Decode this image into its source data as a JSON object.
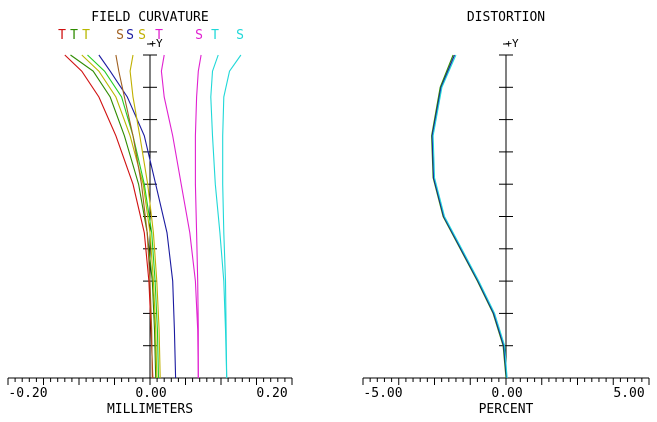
{
  "chart_data": [
    {
      "type": "line",
      "title": "FIELD CURVATURE",
      "xlabel": "MILLIMETERS",
      "ylabel": "+Y",
      "x_tick_labels": [
        "-0.20",
        "0.00",
        "0.20"
      ],
      "xlim": [
        -0.25,
        0.25
      ],
      "ylim": [
        0,
        1
      ],
      "legend": [
        {
          "label": "T",
          "color": "#d01010"
        },
        {
          "label": "T",
          "color": "#2e8b00"
        },
        {
          "label": "T",
          "color": "#b8b800"
        },
        {
          "label": "S",
          "color": "#a06020"
        },
        {
          "label": "S",
          "color": "#1a1aa0"
        },
        {
          "label": "S",
          "color": "#c0b000"
        },
        {
          "label": "T",
          "color": "#e020d0"
        },
        {
          "label": "S",
          "color": "#e020d0"
        },
        {
          "label": "T",
          "color": "#20d8d8"
        },
        {
          "label": "S",
          "color": "#20d8d8"
        }
      ],
      "series": [
        {
          "color": "#d01010",
          "x": [
            0.005,
            0.002,
            -0.002,
            -0.01,
            -0.03,
            -0.06,
            -0.09,
            -0.12,
            -0.15
          ],
          "y": [
            0,
            0.15,
            0.3,
            0.45,
            0.6,
            0.75,
            0.87,
            0.95,
            1.0
          ]
        },
        {
          "color": "#2e8b00",
          "x": [
            0.01,
            0.008,
            0.004,
            -0.005,
            -0.02,
            -0.045,
            -0.07,
            -0.1,
            -0.14
          ],
          "y": [
            0,
            0.15,
            0.3,
            0.45,
            0.6,
            0.75,
            0.87,
            0.95,
            1.0
          ]
        },
        {
          "color": "#b8b800",
          "x": [
            0.012,
            0.01,
            0.006,
            0.0,
            -0.012,
            -0.035,
            -0.06,
            -0.09,
            -0.12
          ],
          "y": [
            0,
            0.15,
            0.3,
            0.45,
            0.6,
            0.75,
            0.87,
            0.95,
            1.0
          ]
        },
        {
          "color": "#22cc22",
          "x": [
            0.015,
            0.013,
            0.009,
            0.003,
            -0.01,
            -0.03,
            -0.05,
            -0.08,
            -0.11
          ],
          "y": [
            0,
            0.15,
            0.3,
            0.45,
            0.6,
            0.75,
            0.87,
            0.95,
            1.0
          ]
        },
        {
          "color": "#1a1aa0",
          "x": [
            0.045,
            0.043,
            0.04,
            0.03,
            0.01,
            -0.01,
            -0.04,
            -0.07,
            -0.09
          ],
          "y": [
            0,
            0.15,
            0.3,
            0.45,
            0.6,
            0.75,
            0.87,
            0.95,
            1.0
          ]
        },
        {
          "color": "#a06020",
          "x": [
            0.004,
            0.003,
            0.0,
            -0.005,
            -0.015,
            -0.03,
            -0.045,
            -0.055,
            -0.06
          ],
          "y": [
            0,
            0.15,
            0.3,
            0.45,
            0.6,
            0.75,
            0.87,
            0.95,
            1.0
          ]
        },
        {
          "color": "#c0b000",
          "x": [
            0.018,
            0.016,
            0.012,
            0.006,
            -0.004,
            -0.018,
            -0.03,
            -0.035,
            -0.03
          ],
          "y": [
            0,
            0.15,
            0.3,
            0.45,
            0.6,
            0.75,
            0.87,
            0.95,
            1.0
          ]
        },
        {
          "color": "#e020d0",
          "x": [
            0.085,
            0.084,
            0.08,
            0.07,
            0.055,
            0.04,
            0.025,
            0.02,
            0.025
          ],
          "y": [
            0,
            0.15,
            0.3,
            0.45,
            0.6,
            0.75,
            0.87,
            0.95,
            1.0
          ]
        },
        {
          "color": "#e020d0",
          "x": [
            0.085,
            0.085,
            0.084,
            0.082,
            0.08,
            0.08,
            0.082,
            0.085,
            0.09
          ],
          "y": [
            0,
            0.15,
            0.3,
            0.45,
            0.6,
            0.75,
            0.87,
            0.95,
            1.0
          ]
        },
        {
          "color": "#20d8d8",
          "x": [
            0.135,
            0.133,
            0.13,
            0.123,
            0.115,
            0.11,
            0.107,
            0.11,
            0.12
          ],
          "y": [
            0,
            0.15,
            0.3,
            0.45,
            0.6,
            0.75,
            0.87,
            0.95,
            1.0
          ]
        },
        {
          "color": "#20d8d8",
          "x": [
            0.135,
            0.134,
            0.133,
            0.13,
            0.128,
            0.128,
            0.13,
            0.14,
            0.16
          ],
          "y": [
            0,
            0.15,
            0.3,
            0.45,
            0.6,
            0.75,
            0.87,
            0.95,
            1.0
          ]
        }
      ]
    },
    {
      "type": "line",
      "title": "DISTORTION",
      "xlabel": "PERCENT",
      "ylabel": "+Y",
      "x_tick_labels": [
        "-5.00",
        "0.00",
        "5.00"
      ],
      "xlim": [
        -5.0,
        5.0
      ],
      "ylim": [
        0,
        1
      ],
      "series": [
        {
          "color": "#2e8b00",
          "x": [
            0.0,
            -0.1,
            -0.45,
            -1.0,
            -1.6,
            -2.2,
            -2.55,
            -2.6,
            -2.3,
            -1.85
          ],
          "y": [
            0,
            0.1,
            0.2,
            0.3,
            0.4,
            0.5,
            0.62,
            0.75,
            0.9,
            1.0
          ]
        },
        {
          "color": "#1a1aa0",
          "x": [
            0.02,
            -0.08,
            -0.43,
            -0.98,
            -1.58,
            -2.18,
            -2.53,
            -2.58,
            -2.27,
            -1.8
          ],
          "y": [
            0,
            0.1,
            0.2,
            0.3,
            0.4,
            0.5,
            0.62,
            0.75,
            0.9,
            1.0
          ]
        },
        {
          "color": "#20d8d8",
          "x": [
            0.04,
            -0.05,
            -0.4,
            -0.95,
            -1.55,
            -2.15,
            -2.5,
            -2.55,
            -2.24,
            -1.75
          ],
          "y": [
            0,
            0.1,
            0.2,
            0.3,
            0.4,
            0.5,
            0.62,
            0.75,
            0.9,
            1.0
          ]
        }
      ]
    }
  ]
}
